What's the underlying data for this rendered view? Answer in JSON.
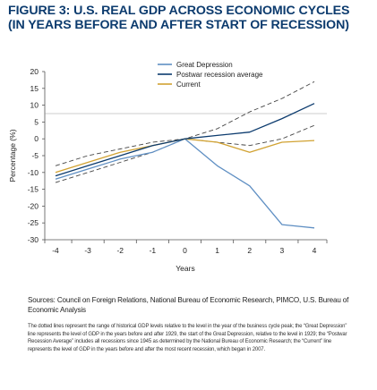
{
  "header": {
    "title_line1": "FIGURE 3: U.S. REAL GDP ACROSS ECONOMIC CYCLES",
    "title_line2": "(IN YEARS BEFORE AND AFTER START OF RECESSION)"
  },
  "chart_data": {
    "type": "line",
    "xlabel": "Years",
    "ylabel": "Percentage (%)",
    "x": [
      -4,
      -3,
      -2,
      -1,
      0,
      1,
      2,
      3,
      4
    ],
    "x_ticks": [
      "-4",
      "-3",
      "-2",
      "-1",
      "0",
      "1",
      "2",
      "3",
      "4"
    ],
    "y_ticks": [
      "20",
      "15",
      "10",
      "5",
      "0",
      "-5",
      "-10",
      "-15",
      "-20",
      "-25",
      "-30"
    ],
    "ylim": [
      -30,
      20
    ],
    "grid": false,
    "legend_position": "top-right",
    "series": [
      {
        "name": "Great Depression",
        "color": "#5f8fc3",
        "style": "solid",
        "values": [
          -12,
          -9,
          -6,
          -4,
          0,
          -8,
          -14,
          -25.5,
          -26.5
        ]
      },
      {
        "name": "Postwar recession average",
        "color": "#0c3b6e",
        "style": "solid",
        "values": [
          -11,
          -8,
          -5,
          -2,
          0,
          1,
          2,
          6,
          10.5
        ]
      },
      {
        "name": "Current",
        "color": "#d1a232",
        "style": "solid",
        "values": [
          -10,
          -7,
          -4,
          -2,
          0,
          -1,
          -4,
          -1,
          -0.5
        ]
      },
      {
        "name": "",
        "color": "#444444",
        "style": "dashed",
        "values": [
          -8,
          -5,
          -3,
          -1,
          0,
          3,
          8,
          12,
          17
        ]
      },
      {
        "name": "",
        "color": "#444444",
        "style": "dashed",
        "values": [
          -13,
          -10,
          -7,
          -4,
          0,
          -1,
          -2,
          0,
          4
        ]
      }
    ]
  },
  "sources_text": "Sources: Council on Foreign Relations, National Bureau of Economic Research, PIMCO, U.S. Bureau of Economic Analysis",
  "note_text": "The dotted lines represent the range of historical GDP levels relative to the level in the year of the business cycle peak; the “Great Depression” line represents the level of GDP in the years before and after 1929, the start of the Great Depression, relative to the level in 1929; the “Postwar Recession Average” includes all recessions since 1945 as determined by the National Bureau of Economic Research; the “Current” line represents the level of GDP in the years before and after the most recent recession, which began in 2007."
}
